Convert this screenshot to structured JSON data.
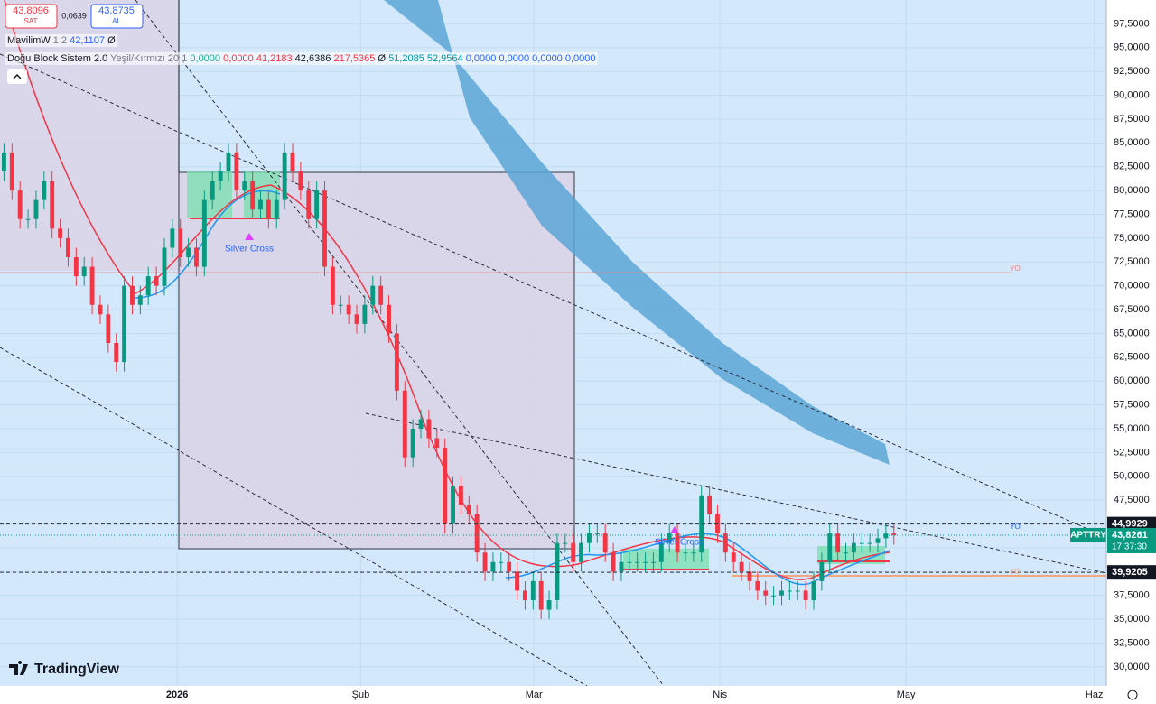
{
  "chart_data": {
    "type": "candlestick",
    "symbol": "APTTRY",
    "up_color": "#089981",
    "down_color": "#f23645",
    "quote": {
      "sell": {
        "value": 43.8096,
        "label": "43,8096"
      },
      "sell_label": "SAT",
      "spread": {
        "value": 0.0639,
        "label": "0,0639"
      },
      "buy": {
        "value": 43.8735,
        "label": "43,8735"
      },
      "buy_label": "AL"
    },
    "indicators": [
      {
        "name": "MavilimW",
        "params": "1 2",
        "tokens": [
          {
            "value": 42.1107,
            "label": "42,1107",
            "color": "#2962ff"
          },
          {
            "label": "Ø",
            "color": "#131722"
          }
        ]
      },
      {
        "name": "Doğu Block Sistem 2.0",
        "params": "Yeşil/Kırmızı 20 1",
        "tokens": [
          {
            "value": 0,
            "label": "0,0000",
            "color": "#22ab94"
          },
          {
            "value": 0,
            "label": "0,0000",
            "color": "#f23645"
          },
          {
            "value": 41.2183,
            "label": "41,2183",
            "color": "#f23645"
          },
          {
            "value": 42.6386,
            "label": "42,6386",
            "color": "#131722"
          },
          {
            "value": 217.5365,
            "label": "217,5365",
            "color": "#f23645"
          },
          {
            "label": "Ø",
            "color": "#131722"
          },
          {
            "value": 51.2085,
            "label": "51,2085",
            "color": "#0097a7"
          },
          {
            "value": 52.9564,
            "label": "52,9564",
            "color": "#0097a7"
          },
          {
            "value": 0,
            "label": "0,0000",
            "color": "#2962ff"
          },
          {
            "value": 0,
            "label": "0,0000",
            "color": "#2962ff"
          },
          {
            "value": 0,
            "label": "0,0000",
            "color": "#2962ff"
          },
          {
            "value": 0,
            "label": "0,0000",
            "color": "#2962ff"
          }
        ]
      }
    ],
    "series": [
      {
        "name": "APTTRY",
        "open": [
          82,
          84,
          80,
          77,
          77,
          79,
          81,
          76,
          75,
          73,
          71,
          72,
          68,
          67,
          64,
          62,
          70,
          68,
          69,
          71,
          70,
          74,
          76,
          73,
          74,
          72,
          79,
          81,
          82,
          84,
          80,
          81,
          78,
          79,
          77,
          79,
          84,
          82,
          80,
          77,
          80,
          72,
          68,
          68,
          67,
          66,
          68,
          70,
          68,
          65,
          59,
          52,
          55,
          56,
          54,
          53,
          45,
          49,
          47,
          46,
          42,
          40,
          41,
          41,
          40,
          38,
          37,
          39,
          36,
          37,
          43,
          43,
          41,
          43,
          44,
          44,
          42,
          40,
          41,
          41,
          41,
          41,
          41,
          43,
          44,
          42,
          42,
          42,
          48,
          46,
          44,
          42,
          41,
          40,
          39,
          38,
          37.5,
          37.5,
          38,
          38,
          38,
          37,
          39,
          41,
          44,
          42,
          42,
          43,
          43,
          43,
          43.5,
          44
        ],
        "high": [
          85,
          85,
          81,
          78,
          80,
          82,
          82,
          77,
          76,
          74,
          73,
          73,
          69,
          68,
          65,
          71,
          71,
          70,
          72,
          72,
          75,
          77,
          77,
          75,
          75,
          80,
          82,
          83,
          85,
          85,
          82,
          82,
          80,
          80,
          80,
          85,
          85,
          83,
          81,
          81,
          81,
          73,
          69,
          69,
          68,
          69,
          71,
          71,
          69,
          66,
          60,
          56,
          57,
          57,
          55,
          54,
          50,
          50,
          48,
          47,
          43,
          42,
          42,
          42,
          41,
          39,
          40,
          40,
          38,
          44,
          44,
          44,
          44,
          45,
          45,
          45,
          43,
          42,
          42,
          42,
          42,
          42,
          44,
          45,
          45,
          43,
          43,
          49,
          49,
          47,
          45,
          43,
          42,
          41,
          40,
          39,
          38.5,
          39,
          39,
          39,
          39,
          40,
          42,
          45,
          45,
          43,
          44,
          44,
          44,
          44.5,
          45,
          45
        ],
        "low": [
          81,
          79,
          76,
          76,
          76,
          78,
          75,
          74,
          72,
          70,
          70,
          67,
          66,
          63,
          61,
          61,
          67,
          67,
          68,
          69,
          69,
          73,
          72,
          72,
          71,
          71,
          78,
          80,
          81,
          79,
          79,
          77,
          77,
          76,
          76,
          78,
          81,
          79,
          76,
          76,
          71,
          67,
          67,
          66,
          65,
          65,
          67,
          67,
          64,
          58,
          51,
          51,
          54,
          53,
          52,
          44,
          44,
          46,
          45,
          41,
          39,
          39,
          40,
          39,
          37,
          36,
          36,
          35,
          35,
          36,
          42,
          40,
          40,
          42,
          43,
          41,
          39,
          39,
          40,
          40,
          40,
          40,
          40,
          42,
          41,
          41,
          41,
          41,
          45,
          43,
          41,
          40,
          39,
          38,
          37,
          36.5,
          36.5,
          36.5,
          37,
          37,
          36,
          36,
          38,
          40,
          41,
          41,
          41,
          42,
          42,
          42,
          42.5,
          42.83
        ],
        "close": [
          84,
          80,
          77,
          77,
          79,
          81,
          76,
          75,
          73,
          71,
          72,
          68,
          67,
          64,
          62,
          70,
          68,
          69,
          71,
          70,
          74,
          76,
          73,
          74,
          72,
          79,
          81,
          82,
          84,
          80,
          81,
          78,
          79,
          77,
          79,
          84,
          82,
          80,
          77,
          80,
          72,
          68,
          68,
          67,
          66,
          68,
          70,
          68,
          65,
          59,
          52,
          55,
          56,
          54,
          53,
          45,
          49,
          47,
          46,
          42,
          40,
          41,
          41,
          40,
          38,
          37,
          39,
          36,
          37,
          43,
          43,
          41,
          43,
          44,
          44,
          42,
          40,
          41,
          41,
          41,
          41,
          41,
          43,
          44,
          42,
          42,
          42,
          48,
          46,
          44,
          42,
          41,
          40,
          39,
          38,
          37.5,
          37.5,
          38,
          38,
          38,
          37,
          39,
          41,
          44,
          42,
          42,
          43,
          43,
          43,
          43.5,
          44,
          43.8261
        ]
      }
    ],
    "last_price": {
      "value": 43.8261,
      "label": "43,8261"
    },
    "countdown": "17:37:30",
    "price_lines": [
      {
        "value": 44.9929,
        "label": "44,9929"
      },
      {
        "value": 39.9205,
        "label": "39,9205"
      }
    ],
    "annotations": [
      "Silver Cross",
      "Silver Cross",
      "YO",
      "YO",
      "YO"
    ],
    "xlim": [
      -0.5,
      137.5
    ],
    "xticks": [
      {
        "value": 21.6,
        "label": "2026"
      },
      {
        "value": 44.5,
        "label": "Şub"
      },
      {
        "value": 66.1,
        "label": "Mar"
      },
      {
        "value": 89.3,
        "label": "Nis"
      },
      {
        "value": 112.5,
        "label": "May"
      },
      {
        "value": 136,
        "label": "Haz"
      }
    ],
    "ylim": [
      28,
      100
    ],
    "yticks": [
      {
        "value": 30,
        "label": "30,0000"
      },
      {
        "value": 32.5,
        "label": "32,5000"
      },
      {
        "value": 35,
        "label": "35,0000"
      },
      {
        "value": 37.5,
        "label": "37,5000"
      },
      {
        "value": 40,
        "label": "40,0000"
      },
      {
        "value": 42.5,
        "label": "42,5000"
      },
      {
        "value": 45,
        "label": "45,0000"
      },
      {
        "value": 47.5,
        "label": "47,5000"
      },
      {
        "value": 50,
        "label": "50,0000"
      },
      {
        "value": 52.5,
        "label": "52,5000"
      },
      {
        "value": 55,
        "label": "55,0000"
      },
      {
        "value": 57.5,
        "label": "57,5000"
      },
      {
        "value": 60,
        "label": "60,0000"
      },
      {
        "value": 62.5,
        "label": "62,5000"
      },
      {
        "value": 65,
        "label": "65,0000"
      },
      {
        "value": 67.5,
        "label": "67,5000"
      },
      {
        "value": 70,
        "label": "70,0000"
      },
      {
        "value": 72.5,
        "label": "72,5000"
      },
      {
        "value": 75,
        "label": "75,0000"
      },
      {
        "value": 77.5,
        "label": "77,5000"
      },
      {
        "value": 80,
        "label": "80,0000"
      },
      {
        "value": 82.5,
        "label": "82,5000"
      },
      {
        "value": 85,
        "label": "85,0000"
      },
      {
        "value": 87.5,
        "label": "87,5000"
      },
      {
        "value": 90,
        "label": "90,0000"
      },
      {
        "value": 92.5,
        "label": "92,5000"
      },
      {
        "value": 95,
        "label": "95,0000"
      },
      {
        "value": 97.5,
        "label": "97,5000"
      }
    ],
    "grid": true,
    "watermark": "TradingView"
  }
}
